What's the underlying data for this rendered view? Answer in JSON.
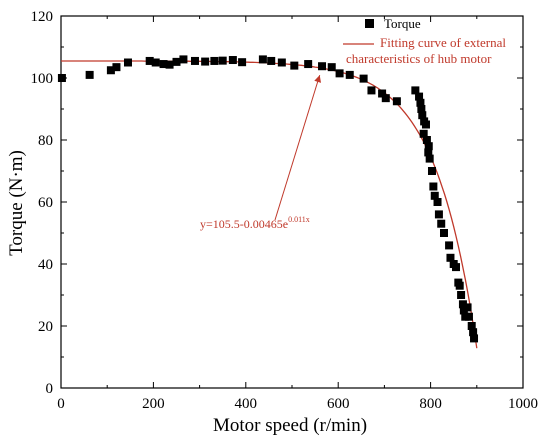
{
  "colors": {
    "marker": "#000000",
    "curve": "#c0392b",
    "axis": "#000000"
  },
  "chart_data": {
    "type": "scatter",
    "xlabel": "Motor speed (r/min)",
    "ylabel": "Torque (N·m)",
    "xlim": [
      0,
      1000
    ],
    "ylim": [
      0,
      120
    ],
    "xticks": [
      "0",
      "200",
      "400",
      "600",
      "800",
      "1000"
    ],
    "yticks": [
      "0",
      "20",
      "40",
      "60",
      "80",
      "100",
      "120"
    ],
    "grid": false,
    "legend_position": "top-right",
    "legend": {
      "scatter_label": "Torque",
      "curve_label_line1": "Fitting curve of external",
      "curve_label_line2": "characteristics of hub motor"
    },
    "annotation": {
      "prefix": "y=105.5-0.00465e",
      "superscript": "0.011x",
      "points_to": {
        "x": 560,
        "y": 103.5
      }
    },
    "series": [
      {
        "name": "Torque",
        "style": "square-markers",
        "points": [
          [
            2,
            100
          ],
          [
            62,
            101
          ],
          [
            108,
            102.5
          ],
          [
            120,
            103.5
          ],
          [
            145,
            105
          ],
          [
            192,
            105.5
          ],
          [
            205,
            105
          ],
          [
            222,
            104.5
          ],
          [
            235,
            104.3
          ],
          [
            250,
            105.2
          ],
          [
            265,
            106
          ],
          [
            290,
            105.5
          ],
          [
            312,
            105.3
          ],
          [
            332,
            105.5
          ],
          [
            350,
            105.6
          ],
          [
            372,
            105.8
          ],
          [
            392,
            105.1
          ],
          [
            437,
            106
          ],
          [
            455,
            105.5
          ],
          [
            478,
            105
          ],
          [
            505,
            104
          ],
          [
            535,
            104.5
          ],
          [
            565,
            103.8
          ],
          [
            586,
            103.5
          ],
          [
            603,
            101.5
          ],
          [
            625,
            101
          ],
          [
            655,
            99.8
          ],
          [
            672,
            96
          ],
          [
            695,
            95
          ],
          [
            703,
            93.5
          ],
          [
            727,
            92.5
          ],
          [
            767,
            96
          ],
          [
            775,
            94
          ],
          [
            778,
            92
          ],
          [
            780,
            90
          ],
          [
            782,
            88
          ],
          [
            786,
            86
          ],
          [
            790,
            85
          ],
          [
            785,
            82
          ],
          [
            792,
            80
          ],
          [
            796,
            78
          ],
          [
            795,
            76
          ],
          [
            798,
            74
          ],
          [
            803,
            70
          ],
          [
            806,
            65
          ],
          [
            809,
            62
          ],
          [
            815,
            60
          ],
          [
            818,
            56
          ],
          [
            823,
            53
          ],
          [
            829,
            50
          ],
          [
            840,
            46
          ],
          [
            843,
            42
          ],
          [
            850,
            40
          ],
          [
            855,
            39
          ],
          [
            860,
            34
          ],
          [
            863,
            33
          ],
          [
            866,
            30
          ],
          [
            870,
            27
          ],
          [
            872,
            25
          ],
          [
            875,
            23
          ],
          [
            880,
            26
          ],
          [
            883,
            23
          ],
          [
            889,
            20
          ],
          [
            892,
            18
          ],
          [
            894,
            16
          ]
        ]
      },
      {
        "name": "Fitting curve of external characteristics of hub motor",
        "style": "line",
        "formula": "y=105.5-0.00465e^(0.011x)",
        "x_range": [
          0,
          900
        ]
      }
    ]
  }
}
